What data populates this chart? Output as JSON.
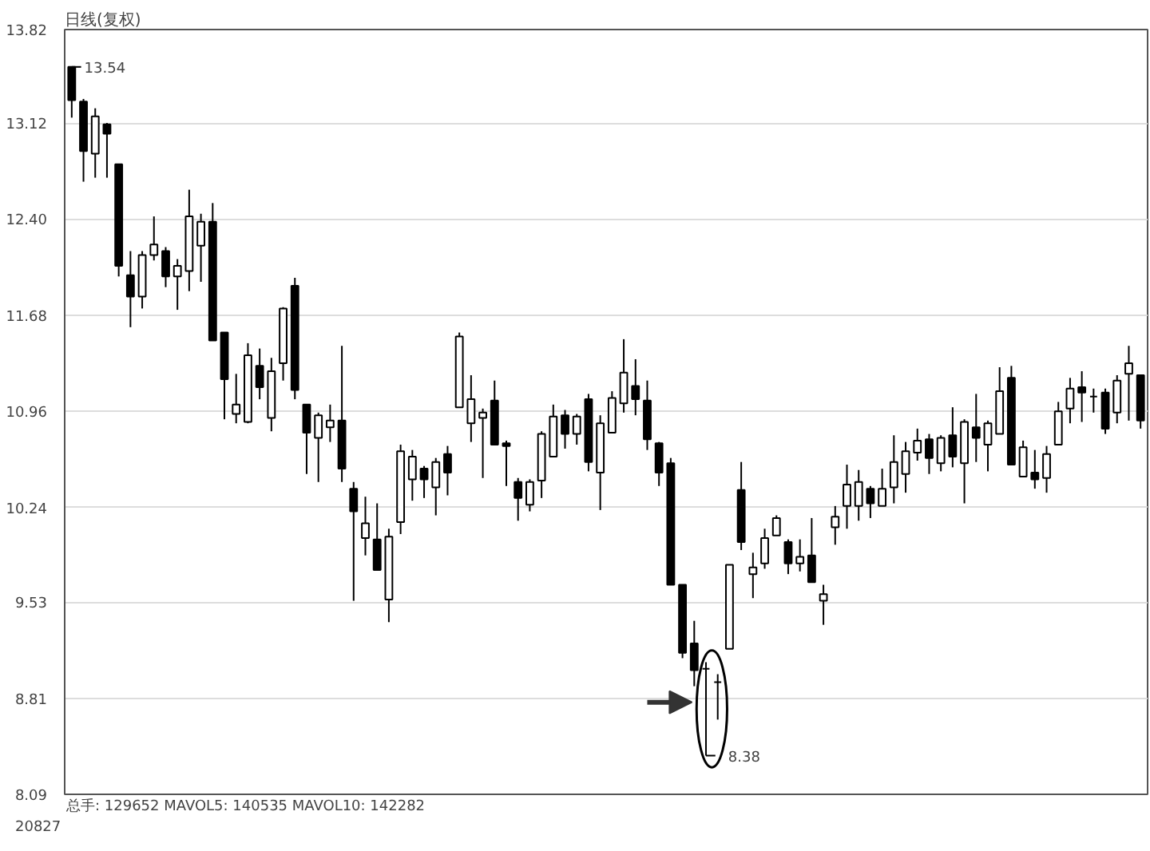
{
  "chart_data": {
    "type": "candlestick",
    "title": "日线(复权)",
    "categories": [
      null,
      null,
      null,
      null,
      null,
      null,
      null,
      null,
      null,
      null,
      null,
      null,
      null,
      null,
      null,
      null,
      null,
      null,
      null,
      null,
      null,
      null,
      null,
      null,
      null,
      null,
      null,
      null,
      null,
      null,
      null,
      null,
      null,
      null,
      null,
      null,
      null,
      null,
      null,
      null,
      null,
      null,
      null,
      null,
      null,
      null,
      null,
      null,
      null,
      null,
      null,
      null,
      null,
      null,
      null,
      null,
      null,
      null,
      null,
      null,
      null,
      null,
      null,
      null,
      null,
      null,
      null,
      null,
      null,
      null,
      null,
      null,
      null,
      null,
      null,
      null,
      null,
      null,
      null,
      null,
      null,
      null,
      null,
      null,
      null,
      null,
      null,
      null,
      null,
      null,
      null,
      null
    ],
    "ohlc": [
      [
        13.54,
        13.54,
        13.16,
        13.29
      ],
      [
        13.28,
        13.3,
        12.68,
        12.91
      ],
      [
        12.89,
        13.23,
        12.71,
        13.17
      ],
      [
        13.11,
        13.12,
        12.71,
        13.04
      ],
      [
        12.81,
        12.81,
        11.97,
        12.05
      ],
      [
        11.98,
        12.16,
        11.59,
        11.82
      ],
      [
        11.82,
        12.16,
        11.73,
        12.13
      ],
      [
        12.13,
        12.42,
        12.09,
        12.21
      ],
      [
        12.16,
        12.19,
        11.89,
        11.97
      ],
      [
        11.97,
        12.1,
        11.72,
        12.05
      ],
      [
        12.01,
        12.62,
        11.86,
        12.42
      ],
      [
        12.2,
        12.44,
        11.93,
        12.38
      ],
      [
        12.38,
        12.52,
        11.49,
        11.49
      ],
      [
        11.55,
        11.55,
        10.9,
        11.2
      ],
      [
        10.94,
        11.24,
        10.87,
        11.01
      ],
      [
        10.88,
        11.47,
        10.87,
        11.38
      ],
      [
        11.3,
        11.43,
        11.05,
        11.14
      ],
      [
        10.91,
        11.36,
        10.81,
        11.26
      ],
      [
        11.32,
        11.74,
        11.19,
        11.73
      ],
      [
        11.9,
        11.96,
        11.05,
        11.12
      ],
      [
        11.01,
        11.01,
        10.49,
        10.8
      ],
      [
        10.76,
        10.95,
        10.43,
        10.93
      ],
      [
        10.84,
        11.01,
        10.73,
        10.89
      ],
      [
        10.89,
        11.45,
        10.43,
        10.53
      ],
      [
        10.38,
        10.43,
        9.54,
        10.21
      ],
      [
        10.01,
        10.32,
        9.88,
        10.12
      ],
      [
        10.0,
        10.27,
        9.77,
        9.77
      ],
      [
        9.55,
        10.08,
        9.38,
        10.02
      ],
      [
        10.13,
        10.71,
        10.04,
        10.66
      ],
      [
        10.45,
        10.67,
        10.29,
        10.62
      ],
      [
        10.53,
        10.55,
        10.31,
        10.45
      ],
      [
        10.39,
        10.61,
        10.18,
        10.58
      ],
      [
        10.64,
        10.7,
        10.33,
        10.5
      ],
      [
        10.99,
        11.55,
        10.99,
        11.52
      ],
      [
        10.87,
        11.23,
        10.73,
        11.05
      ],
      [
        10.91,
        10.98,
        10.46,
        10.95
      ],
      [
        11.04,
        11.19,
        10.71,
        10.71
      ],
      [
        10.72,
        10.74,
        10.4,
        10.7
      ],
      [
        10.43,
        10.46,
        10.14,
        10.31
      ],
      [
        10.26,
        10.45,
        10.21,
        10.43
      ],
      [
        10.44,
        10.81,
        10.31,
        10.79
      ],
      [
        10.62,
        11.01,
        10.62,
        10.92
      ],
      [
        10.93,
        10.97,
        10.68,
        10.79
      ],
      [
        10.79,
        10.94,
        10.71,
        10.92
      ],
      [
        11.05,
        11.09,
        10.51,
        10.58
      ],
      [
        10.5,
        10.93,
        10.22,
        10.87
      ],
      [
        10.8,
        11.11,
        10.8,
        11.06
      ],
      [
        11.02,
        11.5,
        10.95,
        11.25
      ],
      [
        11.15,
        11.35,
        10.93,
        11.05
      ],
      [
        11.04,
        11.19,
        10.67,
        10.75
      ],
      [
        10.72,
        10.73,
        10.4,
        10.5
      ],
      [
        10.57,
        10.61,
        9.66,
        9.66
      ],
      [
        9.66,
        9.66,
        9.11,
        9.15
      ],
      [
        9.22,
        9.39,
        8.9,
        9.02
      ],
      [
        9.03,
        9.08,
        8.38,
        9.03
      ],
      [
        8.93,
        8.99,
        8.65,
        8.93
      ],
      [
        9.18,
        9.81,
        9.18,
        9.81
      ],
      [
        10.37,
        10.58,
        9.92,
        9.98
      ],
      [
        9.74,
        9.9,
        9.56,
        9.79
      ],
      [
        9.82,
        10.08,
        9.78,
        10.01
      ],
      [
        10.03,
        10.18,
        10.03,
        10.16
      ],
      [
        9.98,
        10.0,
        9.74,
        9.82
      ],
      [
        9.82,
        10.0,
        9.76,
        9.87
      ],
      [
        9.88,
        10.16,
        9.68,
        9.68
      ],
      [
        9.54,
        9.66,
        9.36,
        9.59
      ],
      [
        10.09,
        10.25,
        9.96,
        10.17
      ],
      [
        10.25,
        10.56,
        10.08,
        10.41
      ],
      [
        10.25,
        10.52,
        10.14,
        10.43
      ],
      [
        10.38,
        10.4,
        10.16,
        10.27
      ],
      [
        10.25,
        10.53,
        10.25,
        10.38
      ],
      [
        10.39,
        10.78,
        10.27,
        10.58
      ],
      [
        10.49,
        10.73,
        10.35,
        10.66
      ],
      [
        10.65,
        10.83,
        10.59,
        10.74
      ],
      [
        10.75,
        10.79,
        10.49,
        10.61
      ],
      [
        10.57,
        10.78,
        10.51,
        10.76
      ],
      [
        10.78,
        10.99,
        10.54,
        10.62
      ],
      [
        10.57,
        10.9,
        10.27,
        10.88
      ],
      [
        10.84,
        11.09,
        10.58,
        10.76
      ],
      [
        10.71,
        10.89,
        10.51,
        10.87
      ],
      [
        10.79,
        11.29,
        10.79,
        11.11
      ],
      [
        11.21,
        11.3,
        10.56,
        10.56
      ],
      [
        10.47,
        10.74,
        10.47,
        10.69
      ],
      [
        10.5,
        10.67,
        10.38,
        10.45
      ],
      [
        10.46,
        10.7,
        10.35,
        10.64
      ],
      [
        10.71,
        11.03,
        10.71,
        10.96
      ],
      [
        10.98,
        11.21,
        10.87,
        11.13
      ],
      [
        11.14,
        11.26,
        10.88,
        11.1
      ],
      [
        11.07,
        11.13,
        10.95,
        11.07
      ],
      [
        11.1,
        11.13,
        10.79,
        10.83
      ],
      [
        10.95,
        11.23,
        10.87,
        11.19
      ],
      [
        11.24,
        11.45,
        10.89,
        11.32
      ],
      [
        11.23,
        11.23,
        10.83,
        10.89
      ]
    ],
    "colors": [
      "#000000",
      "#000000",
      "#ffffff",
      "#000000",
      "#000000",
      "#000000",
      "#ffffff",
      "#ffffff",
      "#000000",
      "#ffffff",
      "#ffffff",
      "#ffffff",
      "#000000",
      "#000000",
      "#ffffff",
      "#ffffff",
      "#000000",
      "#ffffff",
      "#ffffff",
      "#000000",
      "#000000",
      "#ffffff",
      "#ffffff",
      "#000000",
      "#000000",
      "#ffffff",
      "#000000",
      "#ffffff",
      "#ffffff",
      "#ffffff",
      "#000000",
      "#ffffff",
      "#000000",
      "#ffffff",
      "#ffffff",
      "#ffffff",
      "#000000",
      "#000000",
      "#000000",
      "#ffffff",
      "#ffffff",
      "#ffffff",
      "#000000",
      "#ffffff",
      "#000000",
      "#ffffff",
      "#ffffff",
      "#ffffff",
      "#000000",
      "#000000",
      "#000000",
      "#000000",
      "#000000",
      "#000000",
      "#000000",
      "#000000",
      "#ffffff",
      "#000000",
      "#ffffff",
      "#ffffff",
      "#ffffff",
      "#000000",
      "#ffffff",
      "#000000",
      "#ffffff",
      "#ffffff",
      "#ffffff",
      "#ffffff",
      "#000000",
      "#ffffff",
      "#ffffff",
      "#ffffff",
      "#ffffff",
      "#000000",
      "#ffffff",
      "#000000",
      "#ffffff",
      "#000000",
      "#ffffff",
      "#ffffff",
      "#000000",
      "#ffffff",
      "#000000",
      "#ffffff",
      "#ffffff",
      "#ffffff",
      "#000000",
      "#000000",
      "#000000",
      "#ffffff",
      "#ffffff",
      "#000000"
    ],
    "ylim": [
      8.09,
      13.82
    ],
    "yticks": [
      8.09,
      8.81,
      9.53,
      10.24,
      10.96,
      11.68,
      {
        "value": 12.4,
        "label": "12.40"
      },
      13.12,
      13.82
    ],
    "grid": "y",
    "tick_labels": "y",
    "annotations": [
      "13.54",
      "8.38",
      "总手: 129652 MAVOL5: 140535 MAVOL10: 142282",
      "20827"
    ]
  }
}
